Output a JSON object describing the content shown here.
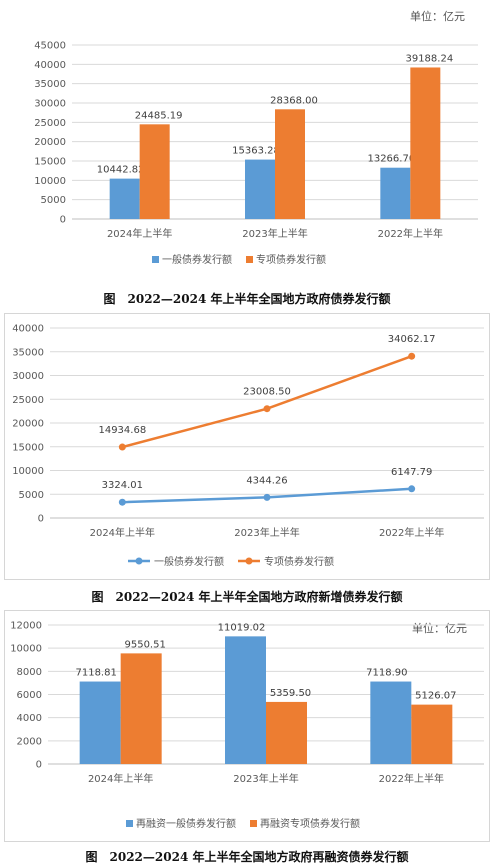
{
  "colors": {
    "blue": "#5B9BD5",
    "orange": "#ED7D31",
    "grid": "#d9d9d9",
    "axis": "#bfbfbf"
  },
  "chart_data": [
    {
      "type": "bar",
      "unit_label": "单位：亿元",
      "categories": [
        "2024年上半年",
        "2023年上半年",
        "2022年上半年"
      ],
      "series": [
        {
          "name": "一般债券发行额",
          "values": [
            10442.82,
            15363.28,
            13266.7
          ],
          "labels": [
            "10442.82",
            "15363.28",
            "13266.70"
          ]
        },
        {
          "name": "专项债券发行额",
          "values": [
            24485.19,
            28368.0,
            39188.24
          ],
          "labels": [
            "24485.19",
            "28368.00",
            "39188.24"
          ]
        }
      ],
      "yticks": [
        "0",
        "5000",
        "10000",
        "15000",
        "20000",
        "25000",
        "30000",
        "35000",
        "40000",
        "45000"
      ],
      "ylim": [
        0,
        45000
      ],
      "caption": "图　2022—2024 年上半年全国地方政府债券发行额"
    },
    {
      "type": "line",
      "categories": [
        "2024年上半年",
        "2023年上半年",
        "2022年上半年"
      ],
      "series": [
        {
          "name": "一般债券发行额",
          "values": [
            3324.01,
            4344.26,
            6147.79
          ],
          "labels": [
            "3324.01",
            "4344.26",
            "6147.79"
          ]
        },
        {
          "name": "专项债券发行额",
          "values": [
            14934.68,
            23008.5,
            34062.17
          ],
          "labels": [
            "14934.68",
            "23008.50",
            "34062.17"
          ]
        }
      ],
      "yticks": [
        "0",
        "5000",
        "10000",
        "15000",
        "20000",
        "25000",
        "30000",
        "35000",
        "40000"
      ],
      "ylim": [
        0,
        40000
      ],
      "caption": "图　2022—2024 年上半年全国地方政府新增债券发行额"
    },
    {
      "type": "bar",
      "unit_label": "单位：亿元",
      "categories": [
        "2024年上半年",
        "2023年上半年",
        "2022年上半年"
      ],
      "series": [
        {
          "name": "再融资一般债券发行额",
          "values": [
            7118.81,
            11019.02,
            7118.9
          ],
          "labels": [
            "7118.81",
            "11019.02",
            "7118.90"
          ]
        },
        {
          "name": "再融资专项债券发行额",
          "values": [
            9550.51,
            5359.5,
            5126.07
          ],
          "labels": [
            "9550.51",
            "5359.50",
            "5126.07"
          ]
        }
      ],
      "yticks": [
        "0",
        "2000",
        "4000",
        "6000",
        "8000",
        "10000",
        "12000"
      ],
      "ylim": [
        0,
        12000
      ],
      "caption": "图　2022—2024 年上半年全国地方政府再融资债券发行额"
    }
  ]
}
